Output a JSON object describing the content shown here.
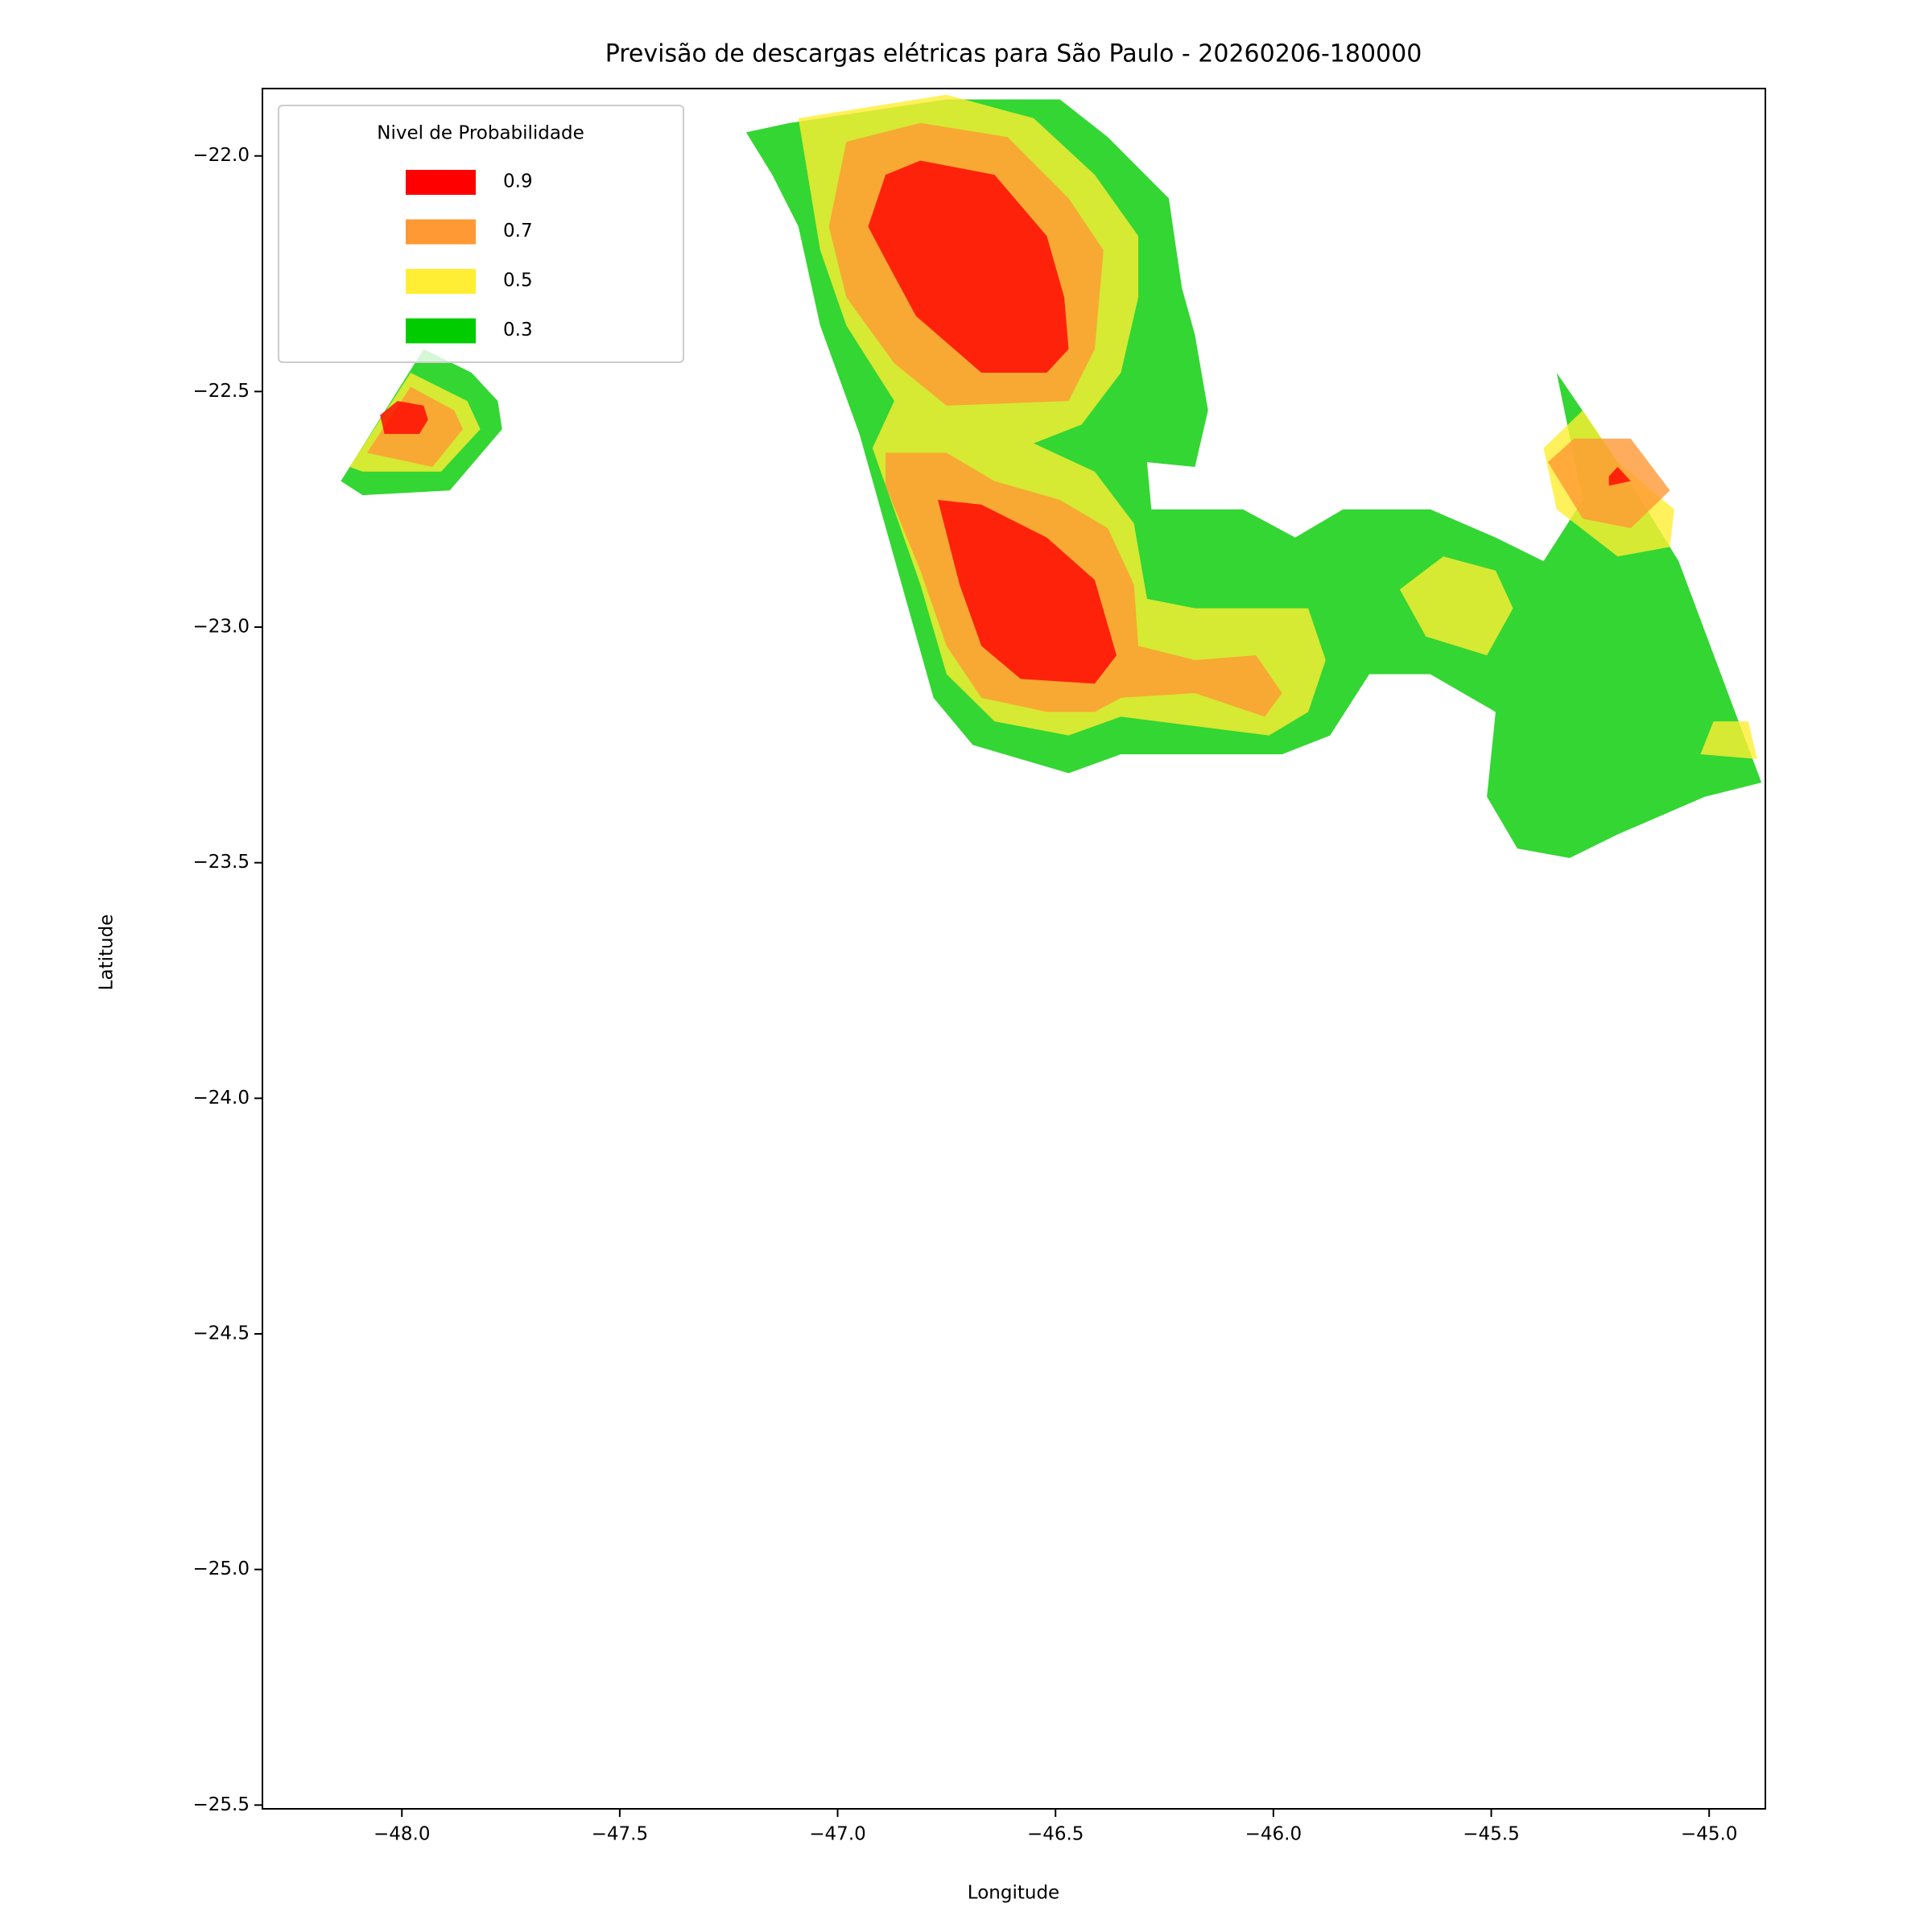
{
  "chart_data": {
    "type": "contour",
    "title": "Previsão de descargas elétricas para São Paulo - 20260206-180000",
    "xlabel": "Longitude",
    "ylabel": "Latitude",
    "legend_title": "Nivel de Probabilidade",
    "legend_loc": "upper left",
    "levels": [
      0.9,
      0.7,
      0.5,
      0.3
    ],
    "colors": [
      "#ff0000",
      "#ff9933",
      "#ffee33",
      "#00cc00"
    ],
    "alpha": 0.8,
    "xlim": [
      -48.32,
      -44.871
    ],
    "ylim": [
      -25.508,
      -21.857
    ],
    "xticks": [
      {
        "value": -48,
        "label": "−48.0"
      },
      {
        "value": -47.5,
        "label": "−47.5"
      },
      {
        "value": -47,
        "label": "−47.0"
      },
      {
        "value": -46.5,
        "label": "−46.5"
      },
      {
        "value": -46,
        "label": "−46.0"
      },
      {
        "value": -45.5,
        "label": "−45.5"
      },
      {
        "value": -45,
        "label": "−45.0"
      }
    ],
    "yticks": [
      {
        "value": -22,
        "label": "−22.0"
      },
      {
        "value": -22.5,
        "label": "−22.5"
      },
      {
        "value": -23,
        "label": "−23.0"
      },
      {
        "value": -23.5,
        "label": "−23.5"
      },
      {
        "value": -24,
        "label": "−24.0"
      },
      {
        "value": -24.5,
        "label": "−24.5"
      },
      {
        "value": -25,
        "label": "−25.0"
      },
      {
        "value": -25.5,
        "label": "−25.5"
      }
    ],
    "regions": [
      {
        "level": 0.3,
        "points": [
          [
            -47.21,
            -21.95
          ],
          [
            -47.11,
            -21.93
          ],
          [
            -46.75,
            -21.88
          ],
          [
            -46.49,
            -21.88
          ],
          [
            -46.38,
            -21.96
          ],
          [
            -46.24,
            -22.09
          ],
          [
            -46.21,
            -22.28
          ],
          [
            -46.18,
            -22.38
          ],
          [
            -46.15,
            -22.54
          ],
          [
            -46.18,
            -22.66
          ],
          [
            -46.29,
            -22.65
          ],
          [
            -46.28,
            -22.75
          ],
          [
            -46.07,
            -22.75
          ],
          [
            -45.95,
            -22.81
          ],
          [
            -45.84,
            -22.75
          ],
          [
            -45.64,
            -22.75
          ],
          [
            -45.49,
            -22.81
          ],
          [
            -45.38,
            -22.86
          ],
          [
            -45.29,
            -22.73
          ],
          [
            -45.35,
            -22.46
          ],
          [
            -45.21,
            -22.65
          ],
          [
            -45.07,
            -22.86
          ],
          [
            -44.88,
            -23.33
          ],
          [
            -45.01,
            -23.36
          ],
          [
            -45.21,
            -23.44
          ],
          [
            -45.32,
            -23.49
          ],
          [
            -45.44,
            -23.47
          ],
          [
            -45.51,
            -23.36
          ],
          [
            -45.49,
            -23.18
          ],
          [
            -45.64,
            -23.1
          ],
          [
            -45.78,
            -23.1
          ],
          [
            -45.87,
            -23.23
          ],
          [
            -45.98,
            -23.27
          ],
          [
            -46.35,
            -23.27
          ],
          [
            -46.47,
            -23.31
          ],
          [
            -46.69,
            -23.25
          ],
          [
            -46.78,
            -23.15
          ],
          [
            -46.95,
            -22.59
          ],
          [
            -47.04,
            -22.36
          ],
          [
            -47.09,
            -22.15
          ],
          [
            -47.15,
            -22.04
          ]
        ]
      },
      {
        "level": 0.3,
        "points": [
          [
            -48.14,
            -22.69
          ],
          [
            -47.95,
            -22.41
          ],
          [
            -47.84,
            -22.46
          ],
          [
            -47.78,
            -22.52
          ],
          [
            -47.77,
            -22.58
          ],
          [
            -47.89,
            -22.71
          ],
          [
            -48.09,
            -22.72
          ]
        ]
      },
      {
        "level": 0.5,
        "points": [
          [
            -47.09,
            -21.92
          ],
          [
            -46.75,
            -21.87
          ],
          [
            -46.55,
            -21.92
          ],
          [
            -46.41,
            -22.04
          ],
          [
            -46.31,
            -22.17
          ],
          [
            -46.31,
            -22.3
          ],
          [
            -46.35,
            -22.46
          ],
          [
            -46.44,
            -22.57
          ],
          [
            -46.55,
            -22.61
          ],
          [
            -46.41,
            -22.67
          ],
          [
            -46.32,
            -22.78
          ],
          [
            -46.29,
            -22.94
          ],
          [
            -46.18,
            -22.96
          ],
          [
            -45.92,
            -22.96
          ],
          [
            -45.88,
            -23.07
          ],
          [
            -45.92,
            -23.18
          ],
          [
            -46.01,
            -23.23
          ],
          [
            -46.35,
            -23.19
          ],
          [
            -46.47,
            -23.23
          ],
          [
            -46.64,
            -23.2
          ],
          [
            -46.75,
            -23.1
          ],
          [
            -46.81,
            -22.91
          ],
          [
            -46.92,
            -22.62
          ],
          [
            -46.87,
            -22.52
          ],
          [
            -46.98,
            -22.36
          ],
          [
            -47.04,
            -22.2
          ]
        ]
      },
      {
        "level": 0.5,
        "points": [
          [
            -48.12,
            -22.66
          ],
          [
            -47.98,
            -22.46
          ],
          [
            -47.85,
            -22.52
          ],
          [
            -47.82,
            -22.58
          ],
          [
            -47.91,
            -22.67
          ],
          [
            -48.09,
            -22.67
          ]
        ]
      },
      {
        "level": 0.5,
        "points": [
          [
            -45.71,
            -22.92
          ],
          [
            -45.61,
            -22.85
          ],
          [
            -45.49,
            -22.88
          ],
          [
            -45.45,
            -22.96
          ],
          [
            -45.51,
            -23.06
          ],
          [
            -45.65,
            -23.02
          ]
        ]
      },
      {
        "level": 0.5,
        "points": [
          [
            -45.38,
            -22.62
          ],
          [
            -45.29,
            -22.54
          ],
          [
            -45.21,
            -22.65
          ],
          [
            -45.08,
            -22.75
          ],
          [
            -45.09,
            -22.83
          ],
          [
            -45.21,
            -22.85
          ],
          [
            -45.35,
            -22.75
          ]
        ]
      },
      {
        "level": 0.5,
        "points": [
          [
            -45.02,
            -23.27
          ],
          [
            -44.99,
            -23.2
          ],
          [
            -44.91,
            -23.2
          ],
          [
            -44.89,
            -23.28
          ]
        ]
      },
      {
        "level": 0.7,
        "points": [
          [
            -46.98,
            -21.97
          ],
          [
            -46.81,
            -21.93
          ],
          [
            -46.61,
            -21.96
          ],
          [
            -46.47,
            -22.09
          ],
          [
            -46.39,
            -22.2
          ],
          [
            -46.41,
            -22.41
          ],
          [
            -46.47,
            -22.52
          ],
          [
            -46.75,
            -22.53
          ],
          [
            -46.87,
            -22.44
          ],
          [
            -46.98,
            -22.3
          ],
          [
            -47.02,
            -22.15
          ]
        ]
      },
      {
        "level": 0.7,
        "points": [
          [
            -46.89,
            -22.63
          ],
          [
            -46.75,
            -22.63
          ],
          [
            -46.64,
            -22.69
          ],
          [
            -46.49,
            -22.73
          ],
          [
            -46.38,
            -22.79
          ],
          [
            -46.32,
            -22.91
          ],
          [
            -46.31,
            -23.04
          ],
          [
            -46.18,
            -23.07
          ],
          [
            -46.04,
            -23.06
          ],
          [
            -45.98,
            -23.14
          ],
          [
            -46.02,
            -23.19
          ],
          [
            -46.18,
            -23.14
          ],
          [
            -46.35,
            -23.15
          ],
          [
            -46.41,
            -23.18
          ],
          [
            -46.52,
            -23.18
          ],
          [
            -46.67,
            -23.15
          ],
          [
            -46.75,
            -23.04
          ],
          [
            -46.81,
            -22.88
          ],
          [
            -46.89,
            -22.7
          ]
        ]
      },
      {
        "level": 0.7,
        "points": [
          [
            -48.08,
            -22.63
          ],
          [
            -47.98,
            -22.49
          ],
          [
            -47.88,
            -22.54
          ],
          [
            -47.86,
            -22.58
          ],
          [
            -47.93,
            -22.66
          ]
        ]
      },
      {
        "level": 0.7,
        "points": [
          [
            -45.37,
            -22.65
          ],
          [
            -45.31,
            -22.6
          ],
          [
            -45.18,
            -22.6
          ],
          [
            -45.09,
            -22.71
          ],
          [
            -45.18,
            -22.79
          ],
          [
            -45.29,
            -22.77
          ]
        ]
      },
      {
        "level": 0.9,
        "points": [
          [
            -46.89,
            -22.04
          ],
          [
            -46.81,
            -22.01
          ],
          [
            -46.64,
            -22.04
          ],
          [
            -46.52,
            -22.17
          ],
          [
            -46.48,
            -22.3
          ],
          [
            -46.47,
            -22.41
          ],
          [
            -46.52,
            -22.46
          ],
          [
            -46.67,
            -22.46
          ],
          [
            -46.82,
            -22.34
          ],
          [
            -46.89,
            -22.22
          ],
          [
            -46.93,
            -22.15
          ]
        ]
      },
      {
        "level": 0.9,
        "points": [
          [
            -46.77,
            -22.73
          ],
          [
            -46.67,
            -22.74
          ],
          [
            -46.52,
            -22.81
          ],
          [
            -46.41,
            -22.9
          ],
          [
            -46.36,
            -23.06
          ],
          [
            -46.41,
            -23.12
          ],
          [
            -46.58,
            -23.11
          ],
          [
            -46.67,
            -23.04
          ],
          [
            -46.72,
            -22.91
          ]
        ]
      },
      {
        "level": 0.9,
        "points": [
          [
            -48.05,
            -22.55
          ],
          [
            -48.01,
            -22.52
          ],
          [
            -47.95,
            -22.53
          ],
          [
            -47.94,
            -22.56
          ],
          [
            -47.96,
            -22.59
          ],
          [
            -48.04,
            -22.59
          ]
        ]
      },
      {
        "level": 0.9,
        "points": [
          [
            -45.23,
            -22.68
          ],
          [
            -45.21,
            -22.66
          ],
          [
            -45.18,
            -22.69
          ],
          [
            -45.23,
            -22.7
          ]
        ]
      }
    ]
  }
}
